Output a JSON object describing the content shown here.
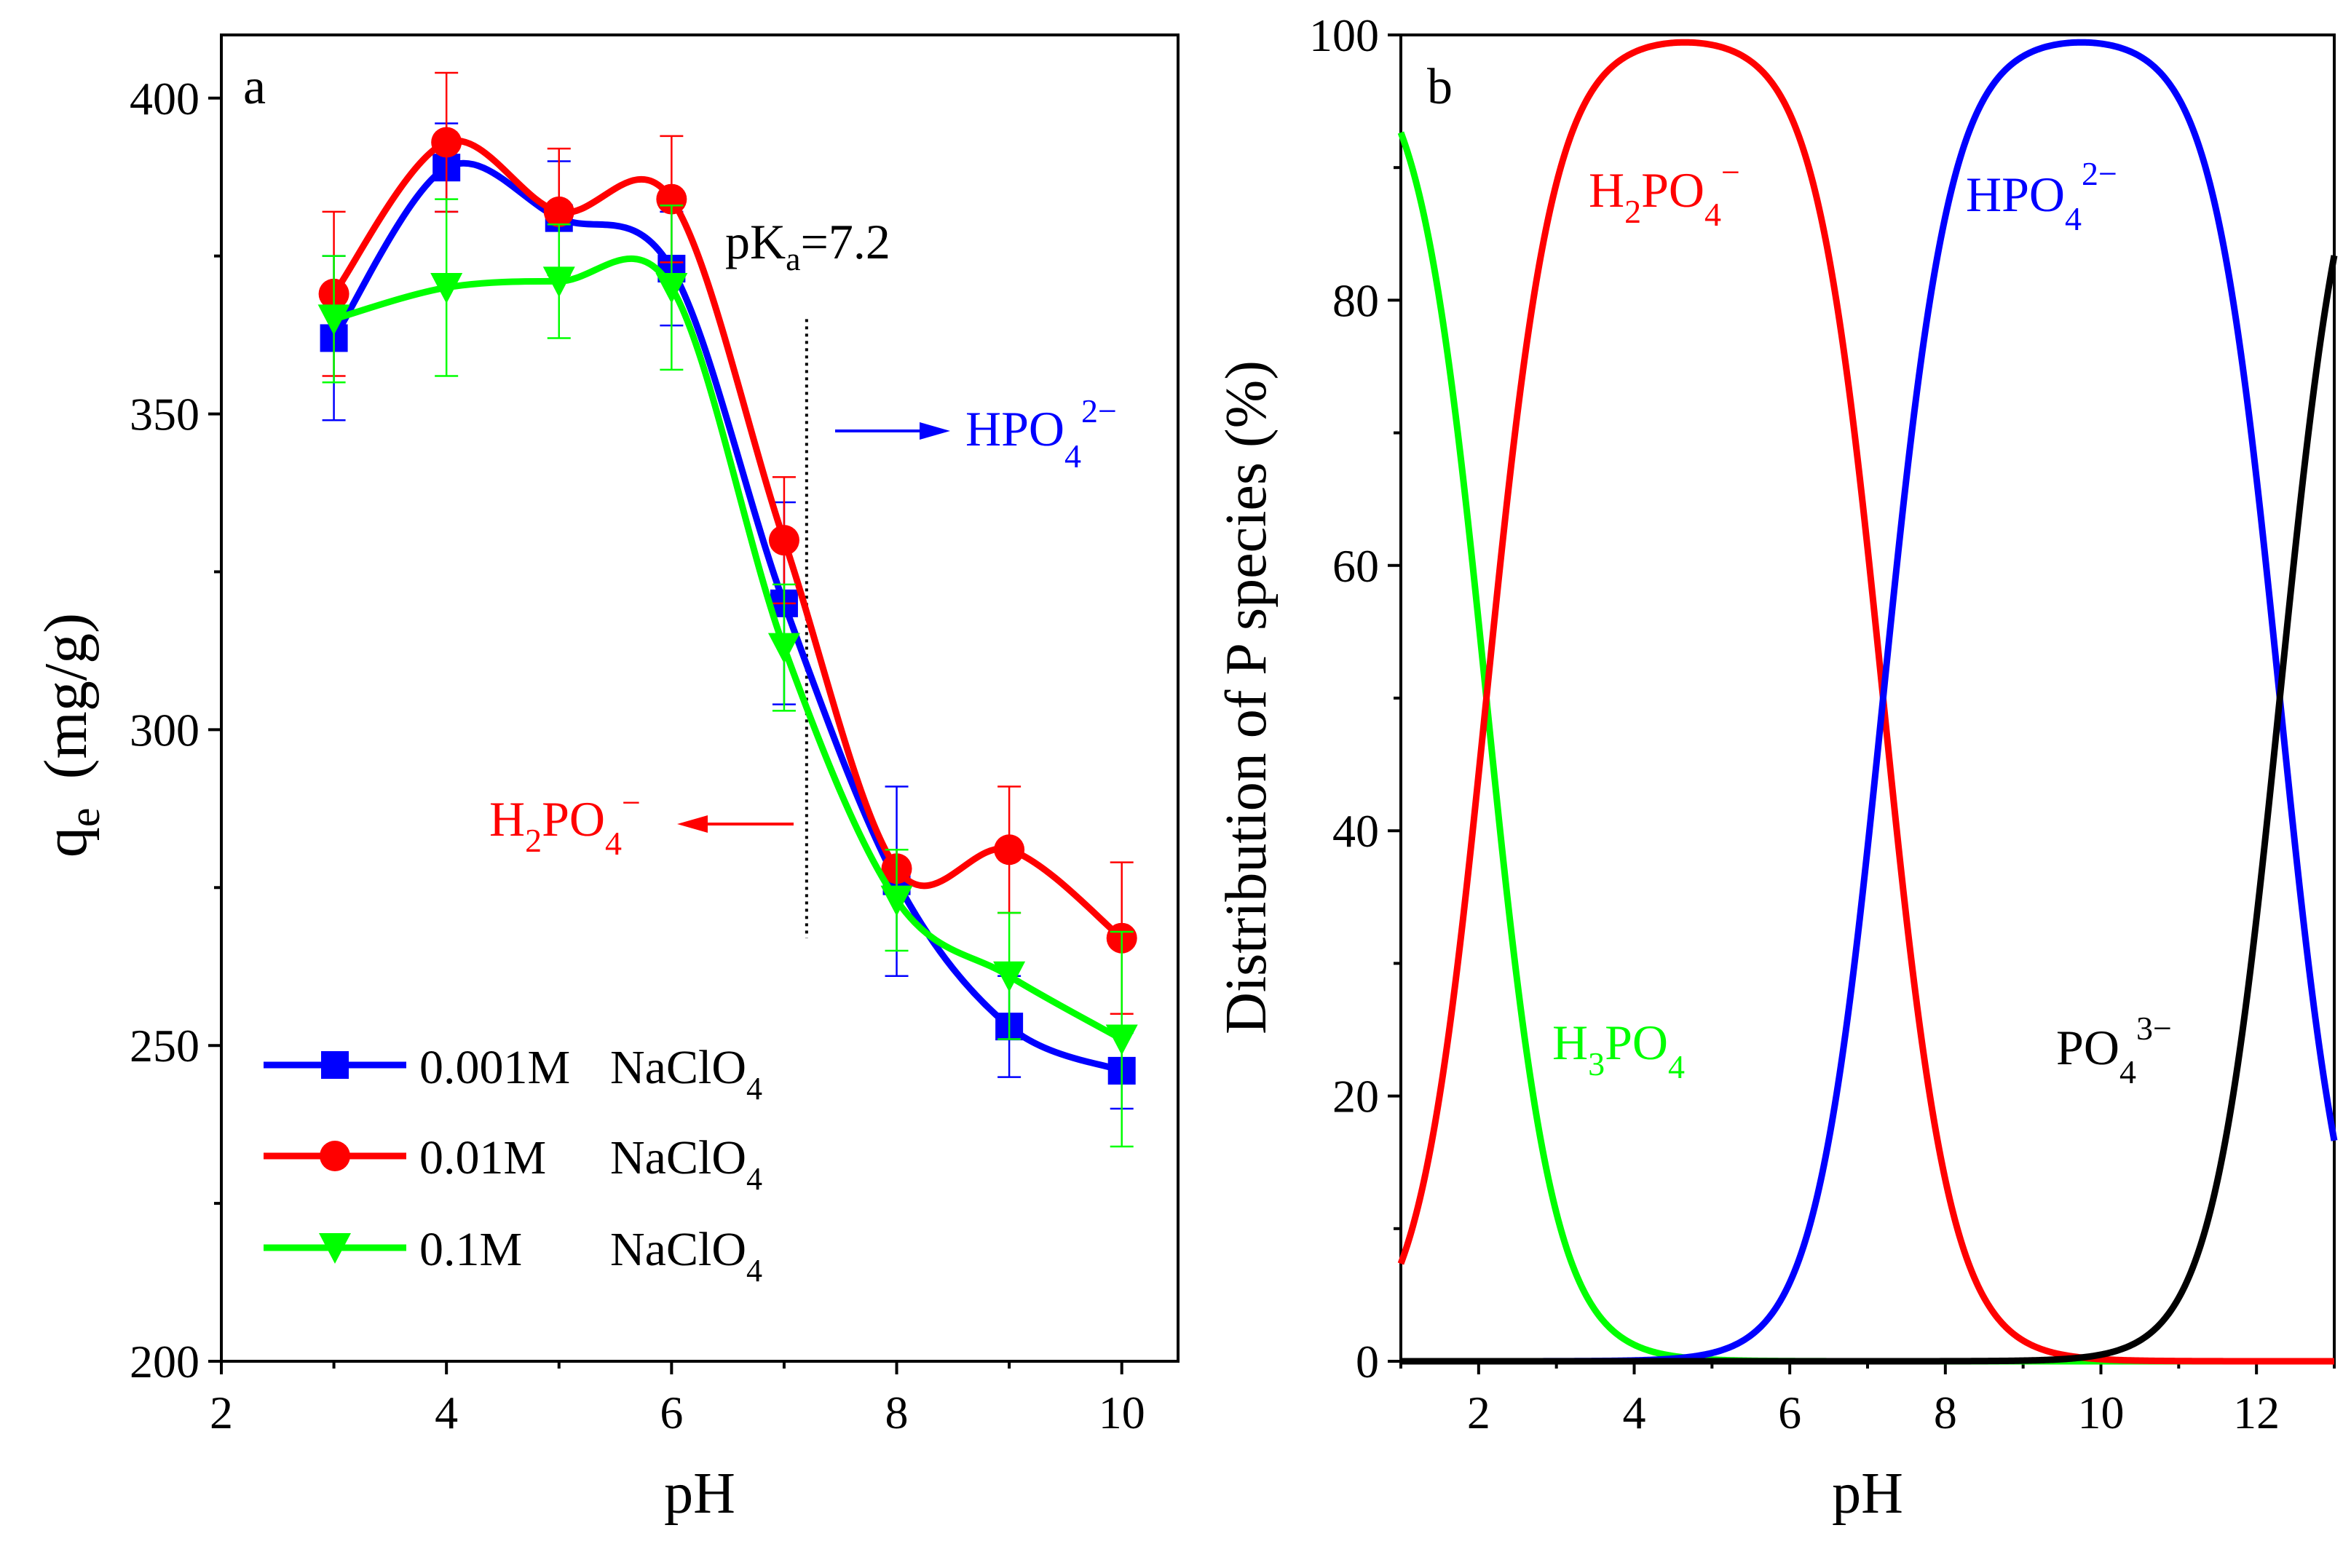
{
  "chart_data": [
    {
      "panel": "a",
      "type": "line",
      "xlabel": "pH",
      "ylabel_main": "q",
      "ylabel_sub": "e",
      "ylabel_unit": "(mg/g)",
      "xlim": [
        2,
        10.5
      ],
      "ylim": [
        200,
        410
      ],
      "xticks": [
        2,
        4,
        6,
        8,
        10
      ],
      "yticks": [
        200,
        250,
        300,
        350,
        400
      ],
      "grid": false,
      "legend_position": "bottom-left",
      "series": [
        {
          "name": "0.001M NaClO4",
          "legend_conc": "0.001M",
          "legend_salt": "NaClO",
          "legend_salt_sub": "4",
          "color": "#0000ff",
          "marker": "square",
          "x": [
            3,
            4,
            5,
            6,
            7,
            8,
            9,
            10
          ],
          "y": [
            362,
            389,
            381,
            373,
            320,
            276,
            253,
            246
          ],
          "err": [
            13,
            7,
            9,
            9,
            16,
            15,
            8,
            6
          ]
        },
        {
          "name": "0.01M NaClO4",
          "legend_conc": "0.01M",
          "legend_salt": "NaClO",
          "legend_salt_sub": "4",
          "color": "#ff0000",
          "marker": "circle",
          "x": [
            3,
            4,
            5,
            6,
            7,
            8,
            9,
            10
          ],
          "y": [
            369,
            393,
            382,
            384,
            330,
            278,
            281,
            267
          ],
          "err": [
            13,
            11,
            10,
            10,
            10,
            3,
            10,
            12
          ]
        },
        {
          "name": "0.1M NaClO4",
          "legend_conc": "0.1M",
          "legend_salt": "NaClO",
          "legend_salt_sub": "4",
          "color": "#00ff00",
          "marker": "triangle-down",
          "x": [
            3,
            4,
            5,
            6,
            7,
            8,
            9,
            10
          ],
          "y": [
            365,
            370,
            371,
            370,
            313,
            273,
            261,
            251
          ],
          "err": [
            10,
            14,
            9,
            13,
            10,
            8,
            10,
            17
          ]
        }
      ],
      "annotations": {
        "panel_label": "a",
        "pka": {
          "main": "pK",
          "sub": "a",
          "rest": "=7.2",
          "x_value": 7.2
        },
        "right_species": {
          "main": "HPO",
          "sub": "4",
          "sup": "2−",
          "color": "#0000ff"
        },
        "left_species": {
          "main": "H",
          "sub1": "2",
          "mid": "PO",
          "sub2": "4",
          "sup": "−",
          "color": "#ff0000"
        }
      }
    },
    {
      "panel": "b",
      "type": "line",
      "xlabel": "pH",
      "ylabel": "Distribution of P species (%)",
      "xlim": [
        1,
        13
      ],
      "ylim": [
        0,
        100
      ],
      "xticks": [
        2,
        4,
        6,
        8,
        10,
        12
      ],
      "yticks": [
        0,
        20,
        40,
        60,
        80,
        100
      ],
      "grid": false,
      "pKa_values": [
        2.1,
        7.2,
        12.3
      ],
      "series": [
        {
          "name": "H3PO4",
          "main": "H",
          "sub1": "3",
          "mid": "PO",
          "sub2": "4",
          "sup": "",
          "color": "#00ff00",
          "species_index": 0
        },
        {
          "name": "H2PO4−",
          "main": "H",
          "sub1": "2",
          "mid": "PO",
          "sub2": "4",
          "sup": "−",
          "color": "#ff0000",
          "species_index": 1
        },
        {
          "name": "HPO42−",
          "main": "HPO",
          "sub1": "4",
          "mid": "",
          "sub2": "",
          "sup": "2−",
          "color": "#0000ff",
          "species_index": 2
        },
        {
          "name": "PO43−",
          "main": "PO",
          "sub1": "4",
          "mid": "",
          "sub2": "",
          "sup": "3−",
          "color": "#000000",
          "species_index": 3
        }
      ],
      "annotations": {
        "panel_label": "b"
      }
    }
  ]
}
